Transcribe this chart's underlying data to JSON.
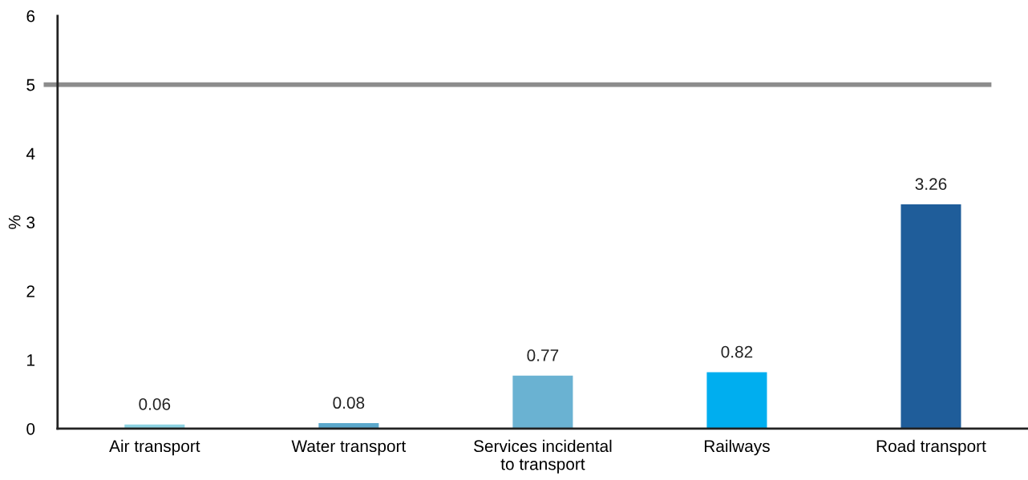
{
  "chart_data": {
    "type": "bar",
    "ylabel": "%",
    "categories": [
      "Air transport",
      "Water transport",
      "Services incidental\nto transport",
      "Railways",
      "Road transport"
    ],
    "values": [
      0.06,
      0.08,
      0.77,
      0.82,
      3.26
    ],
    "colors": [
      "#8dd3e2",
      "#5ba8cc",
      "#6ab2d2",
      "#00aeef",
      "#1f5d9a"
    ],
    "ylim": [
      0,
      6
    ],
    "yticks": [
      0,
      1,
      2,
      3,
      4,
      5,
      6
    ],
    "ref_lines": [
      {
        "axis": "y",
        "value": 5,
        "color": "#8c8c8c"
      }
    ],
    "data_labels": true,
    "grid": false,
    "legend": false
  }
}
